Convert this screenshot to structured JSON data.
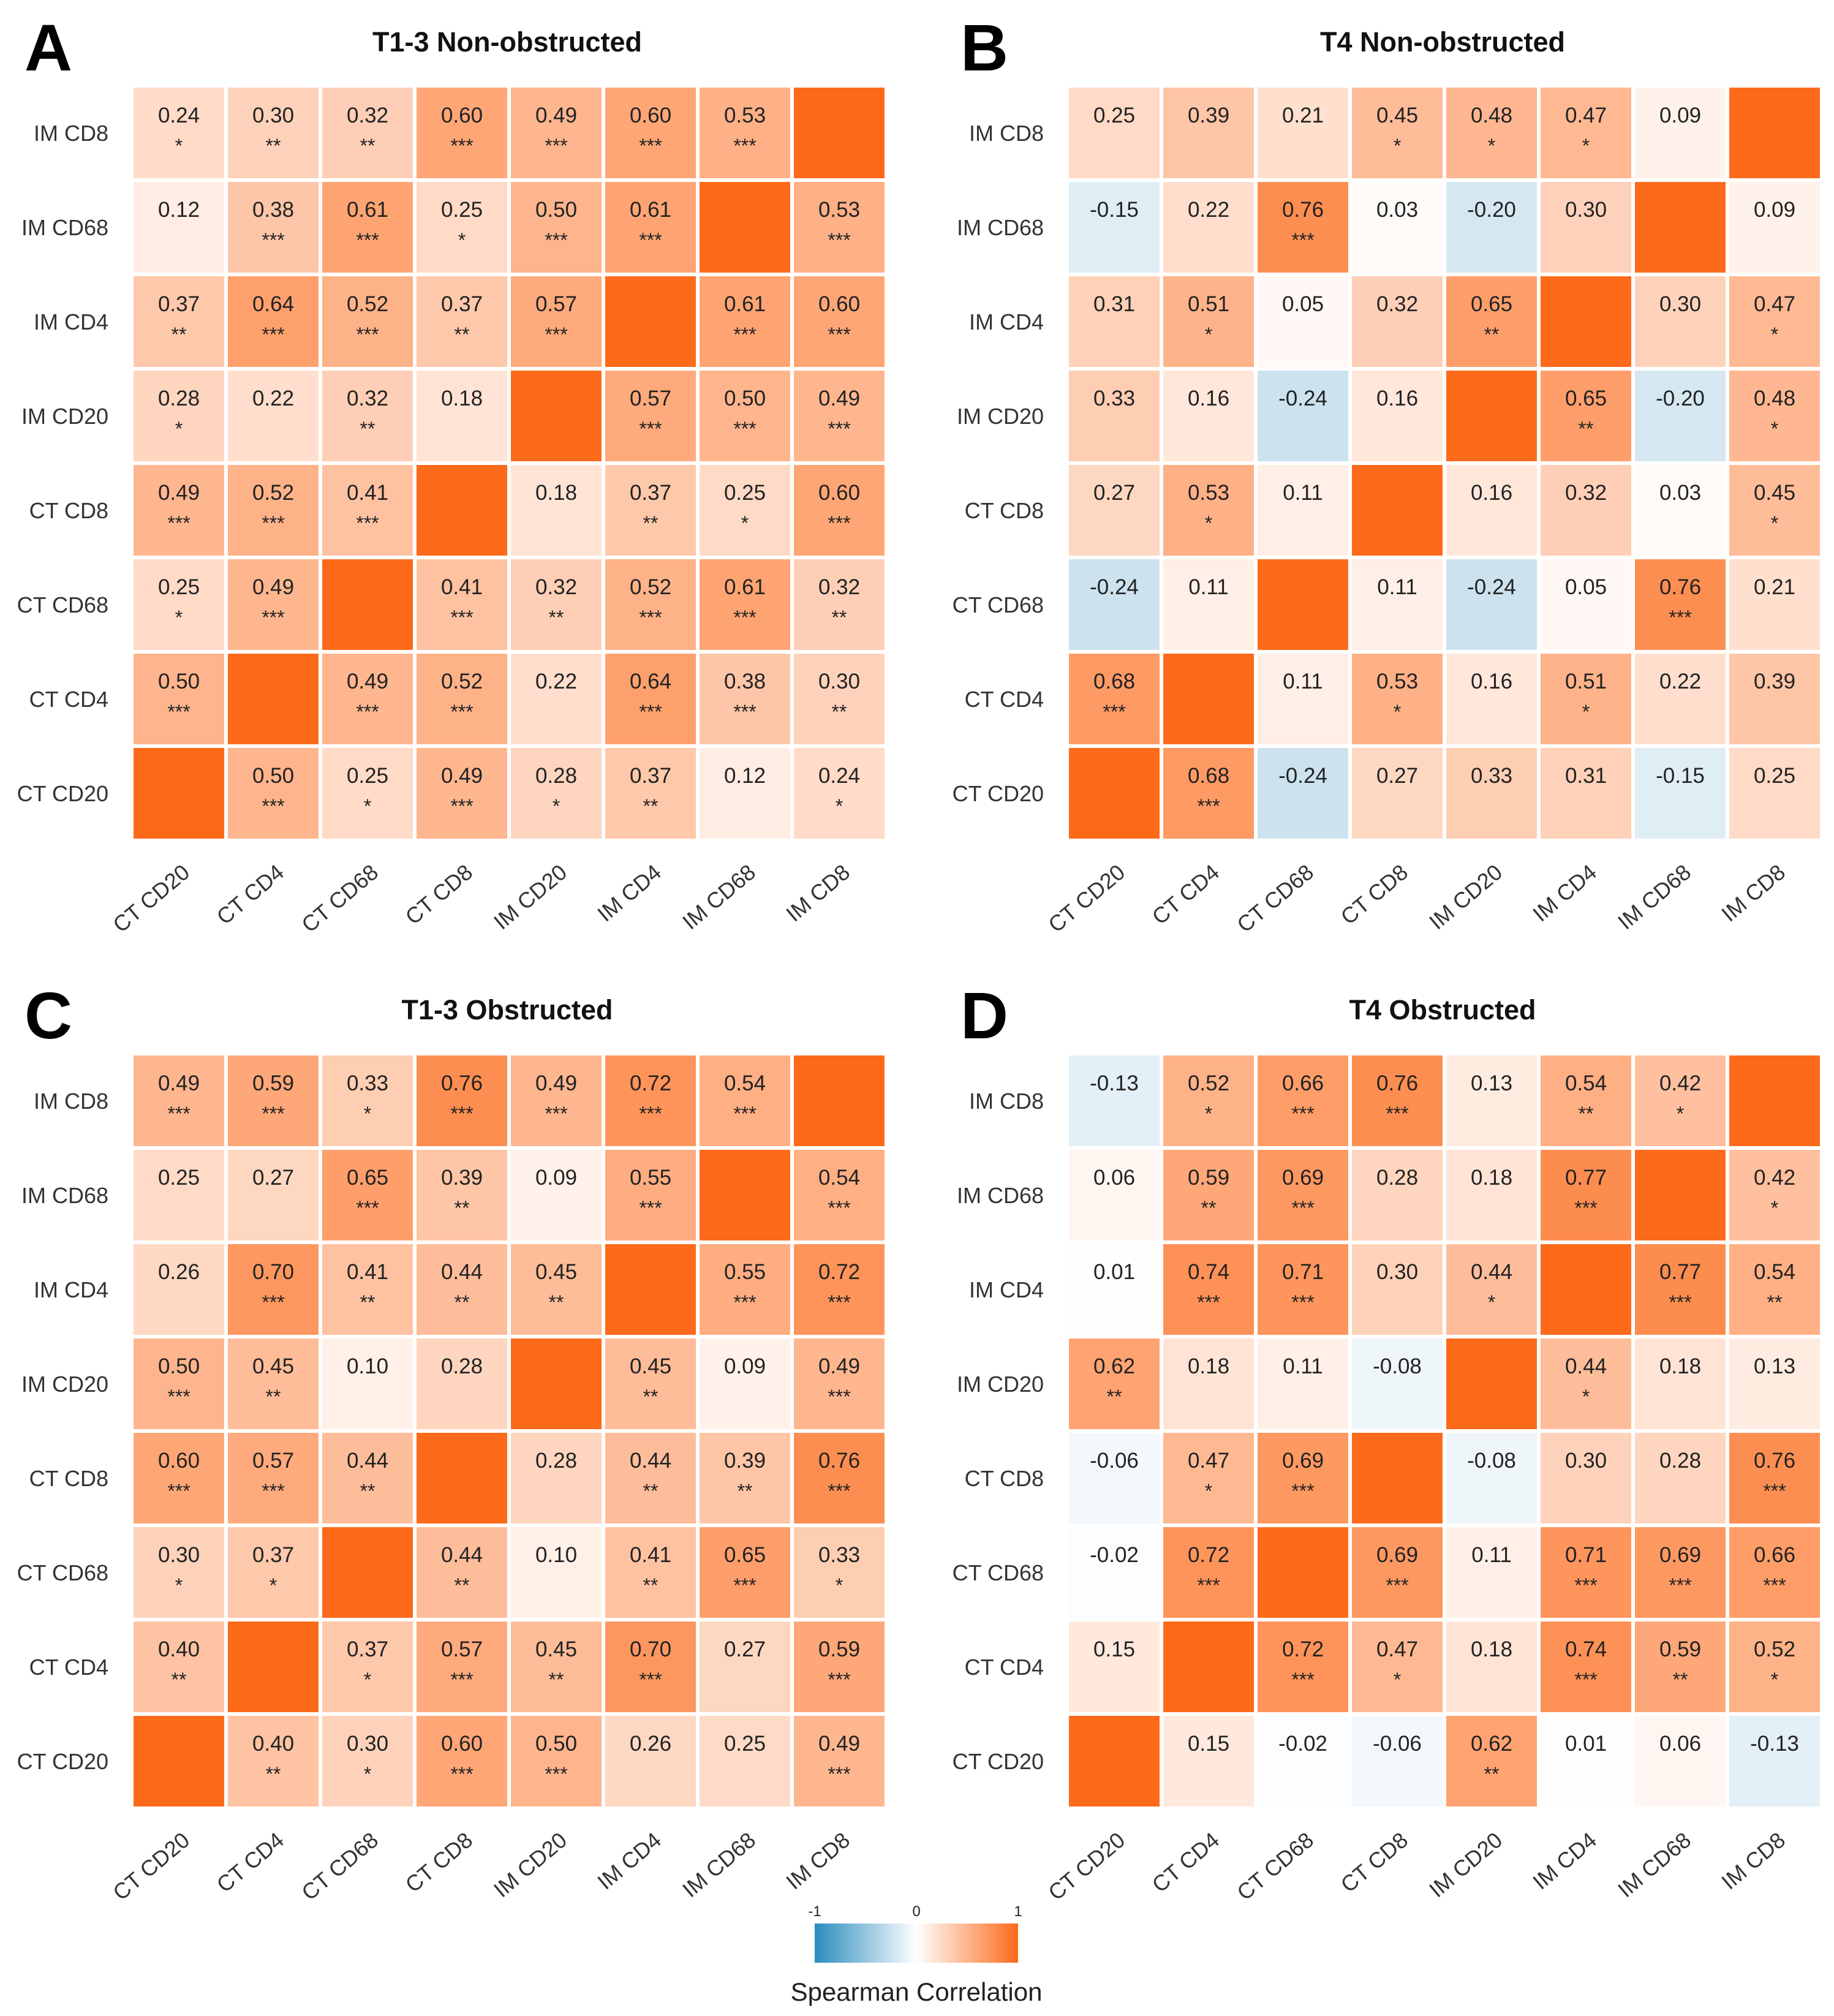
{
  "figure": {
    "legend": {
      "title": "Spearman Correlation",
      "ticks": [
        "-1",
        "0",
        "1"
      ],
      "colors": {
        "low": "#2b8cbe",
        "mid": "#ffffff",
        "high": "#fd6a1a"
      }
    }
  },
  "chart_data": [
    {
      "type": "heatmap",
      "panel_label": "A",
      "title": "T1-3 Non-obstructed",
      "x_categories": [
        "CT CD20",
        "CT CD4",
        "CT CD68",
        "CT CD8",
        "IM CD20",
        "IM CD4",
        "IM CD68",
        "IM CD8"
      ],
      "y_categories": [
        "IM CD8",
        "IM CD68",
        "IM CD4",
        "IM CD20",
        "CT CD8",
        "CT CD68",
        "CT CD4",
        "CT CD20"
      ],
      "values": [
        [
          "0.24",
          "0.30",
          "0.32",
          "0.60",
          "0.49",
          "0.60",
          "0.53",
          null
        ],
        [
          "0.12",
          "0.38",
          "0.61",
          "0.25",
          "0.50",
          "0.61",
          null,
          "0.53"
        ],
        [
          "0.37",
          "0.64",
          "0.52",
          "0.37",
          "0.57",
          null,
          "0.61",
          "0.60"
        ],
        [
          "0.28",
          "0.22",
          "0.32",
          "0.18",
          null,
          "0.57",
          "0.50",
          "0.49"
        ],
        [
          "0.49",
          "0.52",
          "0.41",
          null,
          "0.18",
          "0.37",
          "0.25",
          "0.60"
        ],
        [
          "0.25",
          "0.49",
          null,
          "0.41",
          "0.32",
          "0.52",
          "0.61",
          "0.32"
        ],
        [
          "0.50",
          null,
          "0.49",
          "0.52",
          "0.22",
          "0.64",
          "0.38",
          "0.30"
        ],
        [
          null,
          "0.50",
          "0.25",
          "0.49",
          "0.28",
          "0.37",
          "0.12",
          "0.24"
        ]
      ],
      "significance": [
        [
          "*",
          "**",
          "**",
          "***",
          "***",
          "***",
          "***",
          ""
        ],
        [
          "",
          "***",
          "***",
          "*",
          "***",
          "***",
          "",
          "***"
        ],
        [
          "**",
          "***",
          "***",
          "**",
          "***",
          "",
          "***",
          "***"
        ],
        [
          "*",
          "",
          "**",
          "",
          "",
          "***",
          "***",
          "***"
        ],
        [
          "***",
          "***",
          "***",
          "",
          "",
          "**",
          "*",
          "***"
        ],
        [
          "*",
          "***",
          "",
          "***",
          "**",
          "***",
          "***",
          "**"
        ],
        [
          "***",
          "",
          "***",
          "***",
          "",
          "***",
          "***",
          "**"
        ],
        [
          "",
          "***",
          "*",
          "***",
          "*",
          "**",
          "",
          "*"
        ]
      ],
      "color_range": [
        -1,
        1
      ]
    },
    {
      "type": "heatmap",
      "panel_label": "B",
      "title": "T4 Non-obstructed",
      "x_categories": [
        "CT CD20",
        "CT CD4",
        "CT CD68",
        "CT CD8",
        "IM CD20",
        "IM CD4",
        "IM CD68",
        "IM CD8"
      ],
      "y_categories": [
        "IM CD8",
        "IM CD68",
        "IM CD4",
        "IM CD20",
        "CT CD8",
        "CT CD68",
        "CT CD4",
        "CT CD20"
      ],
      "values": [
        [
          "0.25",
          "0.39",
          "0.21",
          "0.45",
          "0.48",
          "0.47",
          "0.09",
          null
        ],
        [
          "-0.15",
          "0.22",
          "0.76",
          "0.03",
          "-0.20",
          "0.30",
          null,
          "0.09"
        ],
        [
          "0.31",
          "0.51",
          "0.05",
          "0.32",
          "0.65",
          null,
          "0.30",
          "0.47"
        ],
        [
          "0.33",
          "0.16",
          "-0.24",
          "0.16",
          null,
          "0.65",
          "-0.20",
          "0.48"
        ],
        [
          "0.27",
          "0.53",
          "0.11",
          null,
          "0.16",
          "0.32",
          "0.03",
          "0.45"
        ],
        [
          "-0.24",
          "0.11",
          null,
          "0.11",
          "-0.24",
          "0.05",
          "0.76",
          "0.21"
        ],
        [
          "0.68",
          null,
          "0.11",
          "0.53",
          "0.16",
          "0.51",
          "0.22",
          "0.39"
        ],
        [
          null,
          "0.68",
          "-0.24",
          "0.27",
          "0.33",
          "0.31",
          "-0.15",
          "0.25"
        ]
      ],
      "significance": [
        [
          "",
          "",
          "",
          "*",
          "*",
          "*",
          "",
          ""
        ],
        [
          "",
          "",
          "***",
          "",
          "",
          "",
          "",
          ""
        ],
        [
          "",
          "*",
          "",
          "",
          "**",
          "",
          "",
          "*"
        ],
        [
          "",
          "",
          "",
          "",
          "",
          "**",
          "",
          "*"
        ],
        [
          "",
          "*",
          "",
          "",
          "",
          "",
          "",
          "*"
        ],
        [
          "",
          "",
          "",
          "",
          "",
          "",
          "***",
          ""
        ],
        [
          "***",
          "",
          "",
          "*",
          "",
          "*",
          "",
          ""
        ],
        [
          "",
          "***",
          "",
          "",
          "",
          "",
          "",
          ""
        ]
      ],
      "color_range": [
        -1,
        1
      ]
    },
    {
      "type": "heatmap",
      "panel_label": "C",
      "title": "T1-3 Obstructed",
      "x_categories": [
        "CT CD20",
        "CT CD4",
        "CT CD68",
        "CT CD8",
        "IM CD20",
        "IM CD4",
        "IM CD68",
        "IM CD8"
      ],
      "y_categories": [
        "IM CD8",
        "IM CD68",
        "IM CD4",
        "IM CD20",
        "CT CD8",
        "CT CD68",
        "CT CD4",
        "CT CD20"
      ],
      "values": [
        [
          "0.49",
          "0.59",
          "0.33",
          "0.76",
          "0.49",
          "0.72",
          "0.54",
          null
        ],
        [
          "0.25",
          "0.27",
          "0.65",
          "0.39",
          "0.09",
          "0.55",
          null,
          "0.54"
        ],
        [
          "0.26",
          "0.70",
          "0.41",
          "0.44",
          "0.45",
          null,
          "0.55",
          "0.72"
        ],
        [
          "0.50",
          "0.45",
          "0.10",
          "0.28",
          null,
          "0.45",
          "0.09",
          "0.49"
        ],
        [
          "0.60",
          "0.57",
          "0.44",
          null,
          "0.28",
          "0.44",
          "0.39",
          "0.76"
        ],
        [
          "0.30",
          "0.37",
          null,
          "0.44",
          "0.10",
          "0.41",
          "0.65",
          "0.33"
        ],
        [
          "0.40",
          null,
          "0.37",
          "0.57",
          "0.45",
          "0.70",
          "0.27",
          "0.59"
        ],
        [
          null,
          "0.40",
          "0.30",
          "0.60",
          "0.50",
          "0.26",
          "0.25",
          "0.49"
        ]
      ],
      "significance": [
        [
          "***",
          "***",
          "*",
          "***",
          "***",
          "***",
          "***",
          ""
        ],
        [
          "",
          "",
          "***",
          "**",
          "",
          "***",
          "",
          "***"
        ],
        [
          "",
          "***",
          "**",
          "**",
          "**",
          "",
          "***",
          "***"
        ],
        [
          "***",
          "**",
          "",
          "",
          "",
          "**",
          "",
          "***"
        ],
        [
          "***",
          "***",
          "**",
          "",
          "",
          "**",
          "**",
          "***"
        ],
        [
          "*",
          "*",
          "",
          "**",
          "",
          "**",
          "***",
          "*"
        ],
        [
          "**",
          "",
          "*",
          "***",
          "**",
          "***",
          "",
          "***"
        ],
        [
          "",
          "**",
          "*",
          "***",
          "***",
          "",
          "",
          "***"
        ]
      ],
      "color_range": [
        -1,
        1
      ]
    },
    {
      "type": "heatmap",
      "panel_label": "D",
      "title": "T4 Obstructed",
      "x_categories": [
        "CT CD20",
        "CT CD4",
        "CT CD68",
        "CT CD8",
        "IM CD20",
        "IM CD4",
        "IM CD68",
        "IM CD8"
      ],
      "y_categories": [
        "IM CD8",
        "IM CD68",
        "IM CD4",
        "IM CD20",
        "CT CD8",
        "CT CD68",
        "CT CD4",
        "CT CD20"
      ],
      "values": [
        [
          "-0.13",
          "0.52",
          "0.66",
          "0.76",
          "0.13",
          "0.54",
          "0.42",
          null
        ],
        [
          "0.06",
          "0.59",
          "0.69",
          "0.28",
          "0.18",
          "0.77",
          null,
          "0.42"
        ],
        [
          "0.01",
          "0.74",
          "0.71",
          "0.30",
          "0.44",
          null,
          "0.77",
          "0.54"
        ],
        [
          "0.62",
          "0.18",
          "0.11",
          "-0.08",
          null,
          "0.44",
          "0.18",
          "0.13"
        ],
        [
          "-0.06",
          "0.47",
          "0.69",
          null,
          "-0.08",
          "0.30",
          "0.28",
          "0.76"
        ],
        [
          "-0.02",
          "0.72",
          null,
          "0.69",
          "0.11",
          "0.71",
          "0.69",
          "0.66"
        ],
        [
          "0.15",
          null,
          "0.72",
          "0.47",
          "0.18",
          "0.74",
          "0.59",
          "0.52"
        ],
        [
          null,
          "0.15",
          "-0.02",
          "-0.06",
          "0.62",
          "0.01",
          "0.06",
          "-0.13"
        ]
      ],
      "significance": [
        [
          "",
          "*",
          "***",
          "***",
          "",
          "**",
          "*",
          ""
        ],
        [
          "",
          "**",
          "***",
          "",
          "",
          "***",
          "",
          "*"
        ],
        [
          "",
          "***",
          "***",
          "",
          "*",
          "",
          "***",
          "**"
        ],
        [
          "**",
          "",
          "",
          "",
          "",
          "*",
          "",
          ""
        ],
        [
          "",
          "*",
          "***",
          "",
          "",
          "",
          "",
          "***"
        ],
        [
          "",
          "***",
          "",
          "***",
          "",
          "***",
          "***",
          "***"
        ],
        [
          "",
          "",
          "***",
          "*",
          "",
          "***",
          "**",
          "*"
        ],
        [
          "",
          "",
          "",
          "",
          "**",
          "",
          "",
          ""
        ]
      ],
      "color_range": [
        -1,
        1
      ]
    }
  ]
}
